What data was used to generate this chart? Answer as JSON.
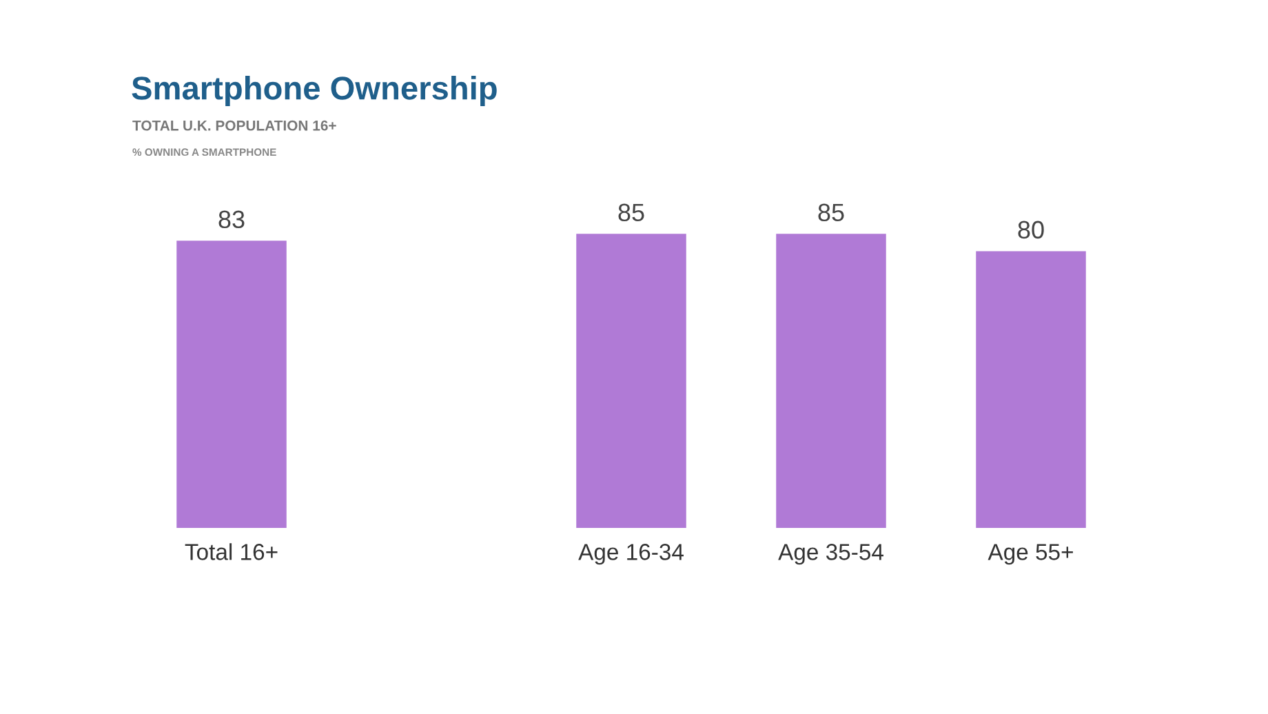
{
  "chart_data": {
    "type": "bar",
    "title": "Smartphone Ownership",
    "subtitle": "TOTAL U.K. POPULATION 16+",
    "annotations": [
      "% OWNING A SMARTPHONE"
    ],
    "categories": [
      "Total 16+",
      null,
      "Age 16-34",
      "Age 35-54",
      "Age 55+"
    ],
    "values": [
      83,
      null,
      85,
      85,
      80
    ],
    "color": "#b07ad6",
    "data_labels": true,
    "grid": false,
    "legend": false,
    "tick_labels": "x"
  }
}
